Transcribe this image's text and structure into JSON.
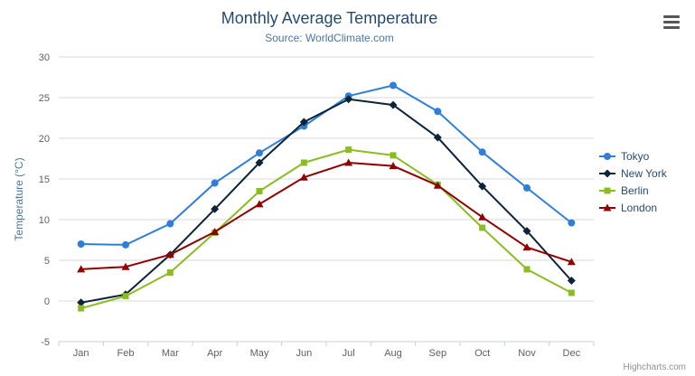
{
  "chart_data": {
    "type": "line",
    "title": "Monthly Average Temperature",
    "subtitle": "Source: WorldClimate.com",
    "xlabel": "",
    "ylabel": "Temperature (°C)",
    "ylim": [
      -5,
      30
    ],
    "ytick_step": 5,
    "grid": true,
    "legend_position": "right",
    "categories": [
      "Jan",
      "Feb",
      "Mar",
      "Apr",
      "May",
      "Jun",
      "Jul",
      "Aug",
      "Sep",
      "Oct",
      "Nov",
      "Dec"
    ],
    "series": [
      {
        "name": "Tokyo",
        "color": "#2f7ed8",
        "marker": "circle",
        "values": [
          7.0,
          6.9,
          9.5,
          14.5,
          18.2,
          21.5,
          25.2,
          26.5,
          23.3,
          18.3,
          13.9,
          9.6
        ]
      },
      {
        "name": "New York",
        "color": "#0d233a",
        "marker": "diamond",
        "values": [
          -0.2,
          0.8,
          5.7,
          11.3,
          17.0,
          22.0,
          24.8,
          24.1,
          20.1,
          14.1,
          8.6,
          2.5
        ]
      },
      {
        "name": "Berlin",
        "color": "#8bbc21",
        "marker": "square",
        "values": [
          -0.9,
          0.6,
          3.5,
          8.4,
          13.5,
          17.0,
          18.6,
          17.9,
          14.3,
          9.0,
          3.9,
          1.0
        ]
      },
      {
        "name": "London",
        "color": "#910000",
        "marker": "triangle",
        "values": [
          3.9,
          4.2,
          5.7,
          8.5,
          11.9,
          15.2,
          17.0,
          16.6,
          14.2,
          10.3,
          6.6,
          4.8
        ]
      }
    ],
    "colors": {
      "grid": "#d8d8d8",
      "axis_line": "#c0d0e0",
      "title": "#274b6d",
      "subtitle": "#4d759e",
      "axis_text": "#606060"
    }
  },
  "icons": {
    "menu": "hamburger-icon"
  },
  "credits": {
    "label": "Highcharts.com"
  }
}
